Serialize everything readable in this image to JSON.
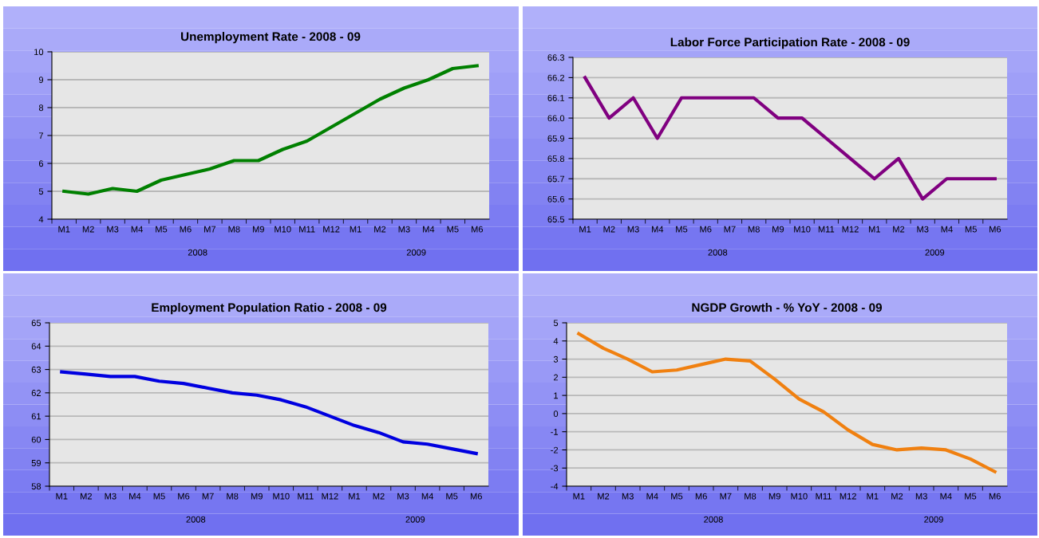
{
  "chart_data": [
    {
      "type": "line",
      "title": "Unemployment Rate - 2008 - 09",
      "categories": [
        "M1",
        "M2",
        "M3",
        "M4",
        "M5",
        "M6",
        "M7",
        "M8",
        "M9",
        "M10",
        "M11",
        "M12",
        "M1",
        "M2",
        "M3",
        "M4",
        "M5",
        "M6"
      ],
      "series": [
        {
          "color": "#008000",
          "values": [
            5.0,
            4.9,
            5.1,
            5.0,
            5.4,
            5.6,
            5.8,
            6.1,
            6.1,
            6.5,
            6.8,
            7.3,
            7.8,
            8.3,
            8.7,
            9.0,
            9.4,
            9.5
          ]
        }
      ],
      "ylim": [
        4,
        10
      ],
      "yticks": [
        4,
        5,
        6,
        7,
        8,
        9,
        10
      ],
      "grid": "y",
      "annotations": [
        "2008",
        "2009"
      ]
    },
    {
      "type": "line",
      "title": "Labor Force Participation Rate - 2008 - 09",
      "categories": [
        "M1",
        "M2",
        "M3",
        "M4",
        "M5",
        "M6",
        "M7",
        "M8",
        "M9",
        "M10",
        "M11",
        "M12",
        "M1",
        "M2",
        "M3",
        "M4",
        "M5",
        "M6"
      ],
      "series": [
        {
          "color": "#800080",
          "values": [
            66.2,
            66.0,
            66.1,
            65.9,
            66.1,
            66.1,
            66.1,
            66.1,
            66.0,
            66.0,
            65.9,
            65.8,
            65.7,
            65.8,
            65.6,
            65.7,
            65.7,
            65.7
          ]
        }
      ],
      "ylim": [
        65.5,
        66.3
      ],
      "yticks": [
        65.5,
        65.6,
        65.7,
        65.8,
        65.9,
        {
          "value": 66,
          "label": "66.0"
        },
        66.1,
        66.2,
        66.3
      ],
      "grid": "y",
      "annotations": [
        "2008",
        "2009"
      ]
    },
    {
      "type": "line",
      "title": "Employment Population Ratio - 2008 - 09",
      "categories": [
        "M1",
        "M2",
        "M3",
        "M4",
        "M5",
        "M6",
        "M7",
        "M8",
        "M9",
        "M10",
        "M11",
        "M12",
        "M1",
        "M2",
        "M3",
        "M4",
        "M5",
        "M6"
      ],
      "series": [
        {
          "color": "#0000e0",
          "values": [
            62.9,
            62.8,
            62.7,
            62.7,
            62.5,
            62.4,
            62.2,
            62.0,
            61.9,
            61.7,
            61.4,
            61.0,
            60.6,
            60.3,
            59.9,
            59.8,
            59.6,
            59.4
          ]
        }
      ],
      "ylim": [
        58,
        65
      ],
      "yticks": [
        58,
        59,
        60,
        61,
        62,
        63,
        64,
        65
      ],
      "grid": "y",
      "annotations": [
        "2008",
        "2009"
      ]
    },
    {
      "type": "line",
      "title": "NGDP Growth - % YoY - 2008 - 09",
      "categories": [
        "M1",
        "M2",
        "M3",
        "M4",
        "M5",
        "M6",
        "M7",
        "M8",
        "M9",
        "M10",
        "M11",
        "M12",
        "M1",
        "M2",
        "M3",
        "M4",
        "M5",
        "M6"
      ],
      "series": [
        {
          "color": "#f08010",
          "values": [
            4.4,
            3.6,
            3.0,
            2.3,
            2.4,
            2.7,
            3.0,
            2.9,
            1.9,
            0.8,
            0.1,
            -0.9,
            -1.7,
            -2.0,
            -1.9,
            -2.0,
            -2.5,
            -3.2
          ]
        }
      ],
      "ylim": [
        -4,
        5
      ],
      "yticks": [
        {
          "value": -4,
          "label": "-4"
        },
        {
          "value": -3,
          "label": "-3"
        },
        {
          "value": -2,
          "label": "-2"
        },
        {
          "value": -1,
          "label": "-1"
        },
        0,
        1,
        2,
        3,
        4,
        5
      ],
      "grid": "y",
      "annotations": [
        "2008",
        "2009"
      ]
    }
  ]
}
